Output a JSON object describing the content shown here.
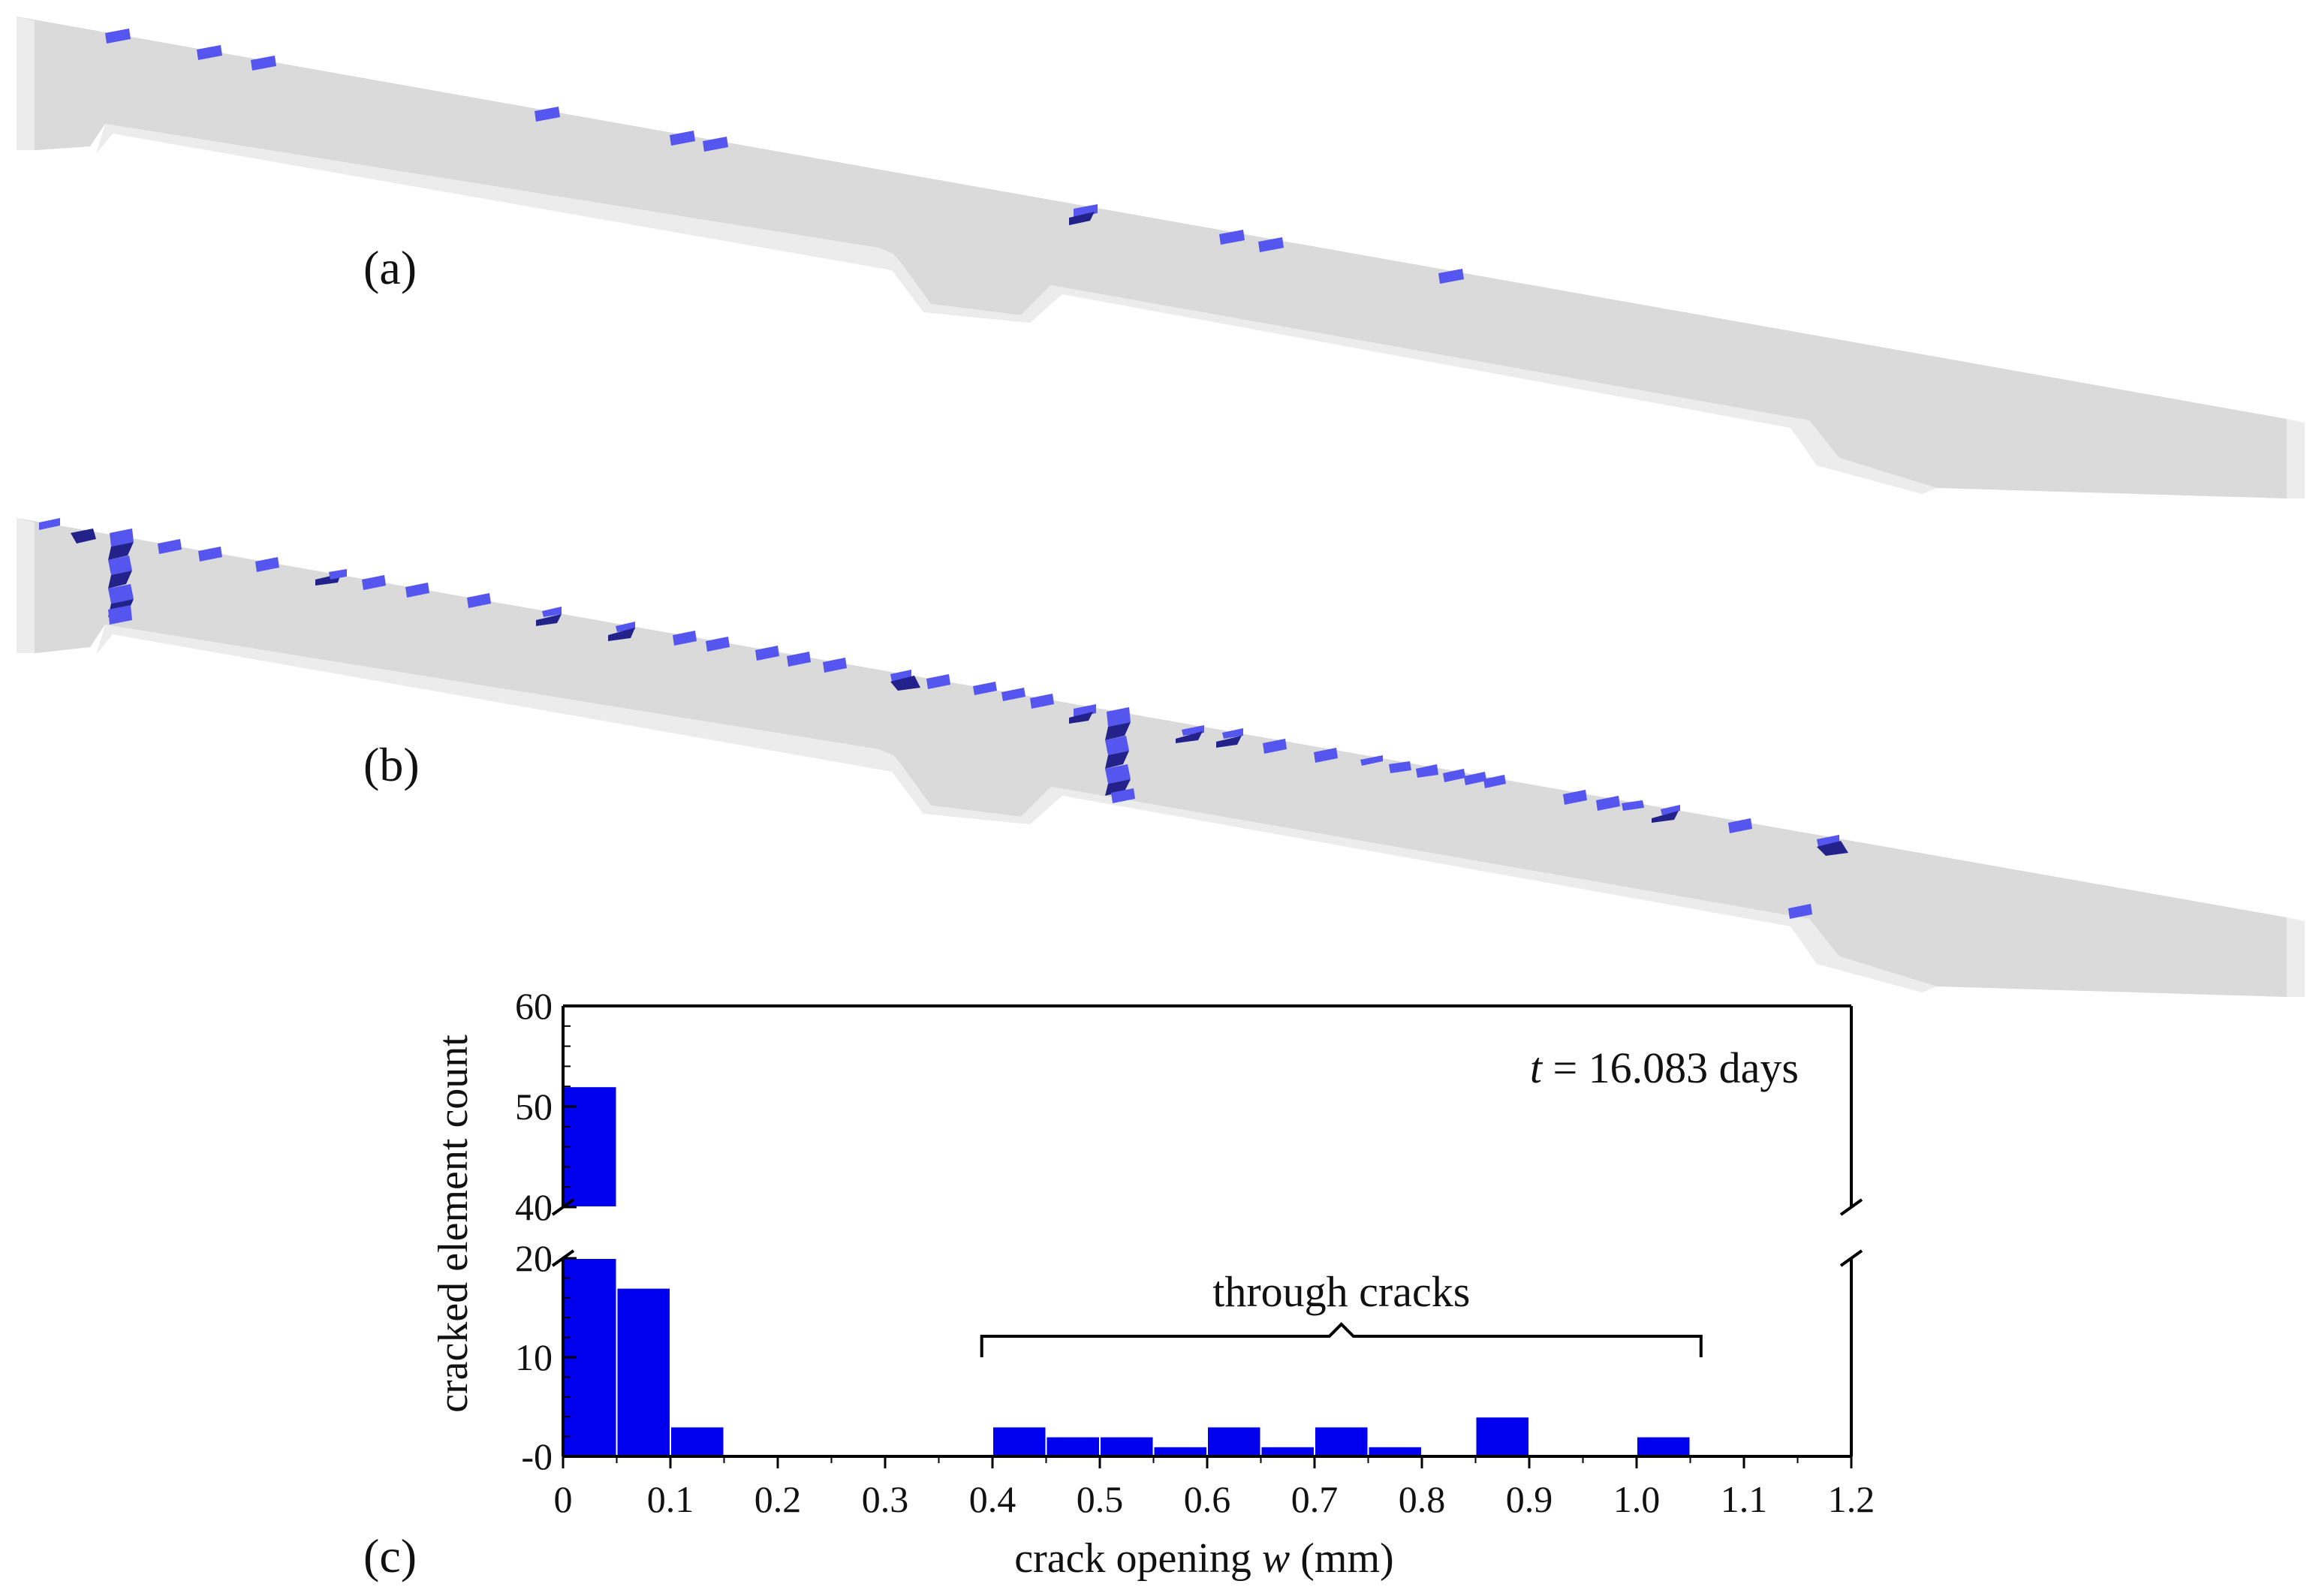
{
  "panels": {
    "a": {
      "label": "(a)"
    },
    "b": {
      "label": "(b)"
    },
    "c": {
      "label": "(c)"
    }
  },
  "colors": {
    "beam": "#dadada",
    "beam_edge": "#ececec",
    "crack": "#5555f0",
    "crack_dark": "#22228a",
    "bar": "#0000ee",
    "axis": "#000000"
  },
  "chart_data": {
    "type": "bar",
    "title": "",
    "xlabel_prefix": "crack opening ",
    "xlabel_var": "w",
    "xlabel_suffix": " (mm)",
    "ylabel": "cracked element count",
    "annotation_var": "t",
    "annotation_rest": " = 16.083 days",
    "bracket_label": "through cracks",
    "bracket_range": [
      0.39,
      1.06
    ],
    "xlim": [
      0,
      1.2
    ],
    "bin_width": 0.05,
    "x_ticks": [
      0,
      0.1,
      0.2,
      0.3,
      0.4,
      0.5,
      0.6,
      0.7,
      0.8,
      0.9,
      1.0,
      1.1,
      1.2
    ],
    "x_tick_labels": [
      "0",
      "0.1",
      "0.2",
      "0.3",
      "0.4",
      "0.5",
      "0.6",
      "0.7",
      "0.8",
      "0.9",
      "1.0",
      "1.1",
      "1.2"
    ],
    "y_break": {
      "lower_range": [
        0,
        20
      ],
      "upper_range": [
        40,
        60
      ]
    },
    "y_ticks_lower": [
      0,
      10,
      20
    ],
    "y_tick_labels_lower": [
      "-0",
      "10",
      "20"
    ],
    "y_ticks_upper": [
      40,
      50,
      60
    ],
    "y_tick_labels_upper": [
      "40",
      "50",
      "60"
    ],
    "bins": [
      {
        "x0": 0.0,
        "x1": 0.05,
        "count": 52
      },
      {
        "x0": 0.05,
        "x1": 0.1,
        "count": 17
      },
      {
        "x0": 0.1,
        "x1": 0.15,
        "count": 3
      },
      {
        "x0": 0.4,
        "x1": 0.45,
        "count": 3
      },
      {
        "x0": 0.45,
        "x1": 0.5,
        "count": 2
      },
      {
        "x0": 0.5,
        "x1": 0.55,
        "count": 2
      },
      {
        "x0": 0.55,
        "x1": 0.6,
        "count": 1
      },
      {
        "x0": 0.6,
        "x1": 0.65,
        "count": 3
      },
      {
        "x0": 0.65,
        "x1": 0.7,
        "count": 1
      },
      {
        "x0": 0.7,
        "x1": 0.75,
        "count": 3
      },
      {
        "x0": 0.75,
        "x1": 0.8,
        "count": 1
      },
      {
        "x0": 0.85,
        "x1": 0.9,
        "count": 4
      },
      {
        "x0": 1.0,
        "x1": 1.05,
        "count": 2
      }
    ]
  }
}
